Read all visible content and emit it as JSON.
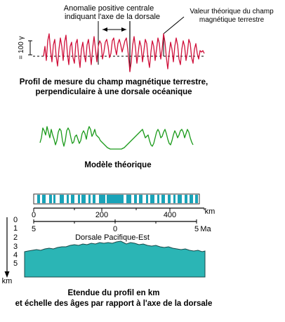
{
  "annotations": {
    "central_anomaly_line1": "Anomalie positive centrale",
    "central_anomaly_line2": "indiquant l'axe de la dorsale",
    "theoretical_value_line1": "Valeur théorique du champ",
    "theoretical_value_line2": "magnétique terrestre",
    "y_scale": "= 100 γ"
  },
  "captions": {
    "measured_line1": "Profil de mesure du champ magnétique terrestre,",
    "measured_line2": "perpendiculaire à une dorsale océanique",
    "model": "Modèle théorique",
    "bottom_line1": "Etendue du profil en km",
    "bottom_line2": "et échelle des âges par rapport à l'axe de la dorsale"
  },
  "distance_axis": {
    "ticks": [
      "0",
      "200",
      "400"
    ],
    "unit": "km"
  },
  "age_axis": {
    "ticks": [
      "5",
      "0",
      "5"
    ],
    "unit": "Ma"
  },
  "depth_axis": {
    "ticks": [
      "0",
      "1",
      "2",
      "3",
      "4",
      "5"
    ],
    "unit": "km"
  },
  "ridge_name": "Dorsale Pacifique-Est",
  "colors": {
    "measured_profile": "#d0103a",
    "model_profile": "#1a9a1a",
    "seafloor": "#2bb5b5",
    "magnetic_band": "#1aa3b8"
  }
}
